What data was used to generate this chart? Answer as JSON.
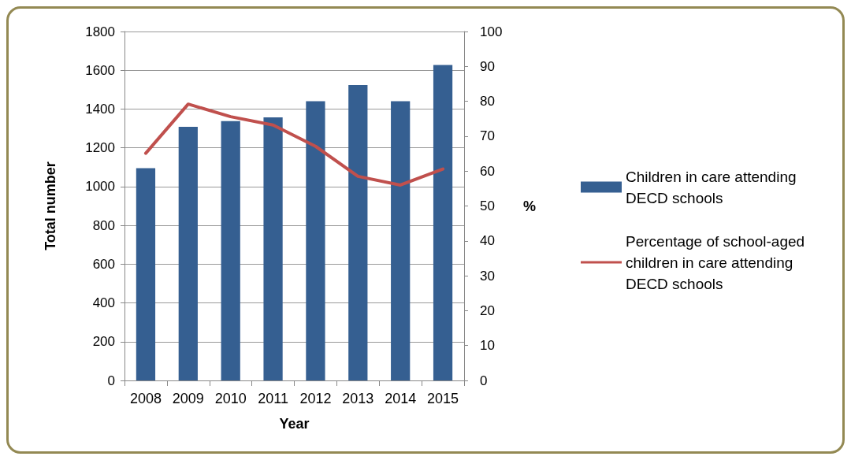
{
  "chart_data": {
    "type": "bar",
    "xlabel": "Year",
    "ylabel": "Total number",
    "y2label": "%",
    "categories": [
      "2008",
      "2009",
      "2010",
      "2011",
      "2012",
      "2013",
      "2014",
      "2015"
    ],
    "series": [
      {
        "name": "Children in care attending DECD schools",
        "color": "#355f91",
        "values": [
          1095,
          1308,
          1338,
          1357,
          1440,
          1524,
          1440,
          1627
        ]
      },
      {
        "name": "Percentage of school-aged children in care attending DECD schools",
        "type": "line",
        "axis": "y2",
        "color": "#c0504d",
        "values": [
          65.1,
          79.2,
          75.6,
          73.2,
          67.1,
          58.5,
          56.0,
          60.6
        ]
      }
    ],
    "ylim": [
      0,
      1800
    ],
    "yticks": [
      0,
      200,
      400,
      600,
      800,
      1000,
      1200,
      1400,
      1600,
      1800
    ],
    "y2lim": [
      0,
      100
    ],
    "y2ticks": [
      0,
      10,
      20,
      30,
      40,
      50,
      60,
      70,
      80,
      90,
      100
    ],
    "grid": "y",
    "legend": "right",
    "marker": "none",
    "line_style": "solid"
  }
}
